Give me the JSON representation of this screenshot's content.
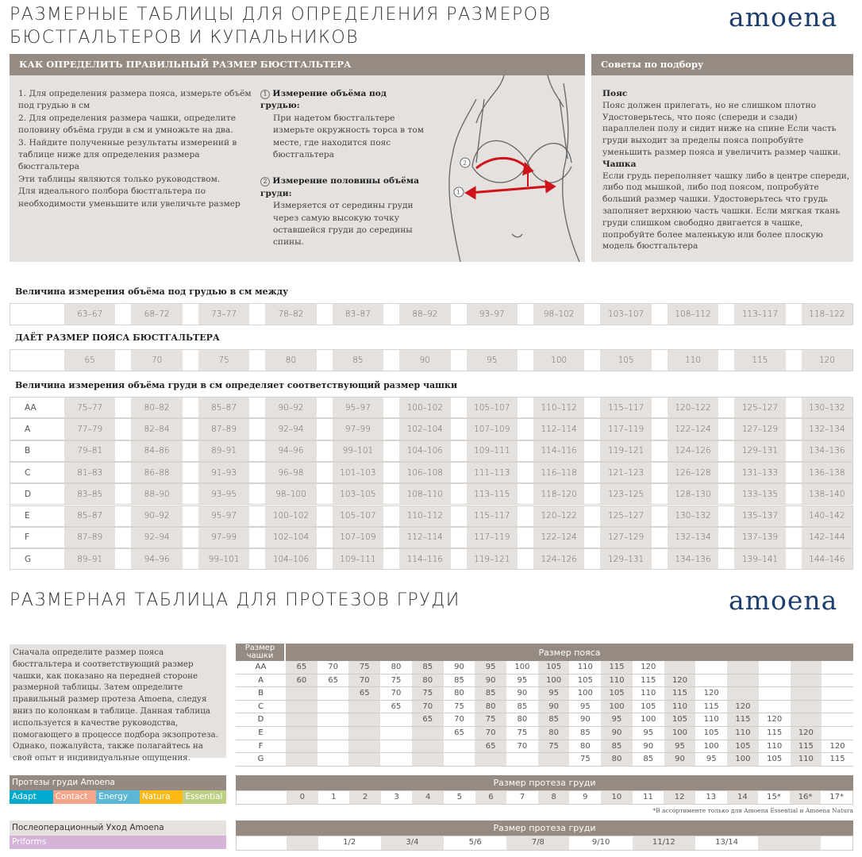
{
  "header": {
    "title_line1": "Размерные таблицы для определения размеров",
    "title_line2": "бюстгальтеров и купальников",
    "logo": "amoena",
    "brand_color": "#1c3f6e"
  },
  "how_to": {
    "heading": "КАК ОПРЕДЕЛИТЬ ПРАВИЛЬНЫЙ РАЗМЕР БЮСТГАЛЬТЕРА",
    "steps": [
      "1. Для определения размера пояса, измерьте объём под грудью в см",
      "2.  Для определения размера чашки, определите половину объёма груди в см и умножьте на два.",
      "3.  Найдите полученные результаты измерений в таблице ниже для определения размера бюстгальтера",
      "Эти таблицы являются только руководством.",
      "Для идеального полбора бюстгальтера по необходимости уменьшите или увеличьте размер"
    ],
    "m1_num": "1",
    "m1_title": "Измерение объёма под грудью:",
    "m1_text": "При надетом бюстгальтере измерьте окружность торса в том месте, где находится пояс бюстгальтера",
    "m2_num": "2",
    "m2_title": "Измерение половины объёма груди:",
    "m2_text": "Измеряется от середины груди через самую высокую точку оставшейся груди до середины спины."
  },
  "tips": {
    "heading": "Советы по подбору",
    "belt_title": "Пояс",
    "belt_text": "Пояс должен прилегать, но не слишком плотно Удостоверьтесь, что пояс (спереди и сзади) параллелен полу и сидит ниже на спине Если часть груди выходит за пределы пояса попробуйте уменьшить размер пояса и увеличить размер чашки.",
    "cup_title": "Чашка",
    "cup_text": "Если грудь переполняет чашку либо в центре спереди, либо под мышкой, либо под поясом, попробуйте больший размер чашки. Удостоверьтесь что грудь заполняет верхнюю часть чашки. Если мягкая ткань груди слишком свободно двигается в чашке, попробуйте более маленькую или более плоскую модель бюстгальтера"
  },
  "underbust": {
    "label": "Величина измерения объёма под грудью в см между",
    "values": [
      "63–67",
      "68–72",
      "73–77",
      "78–82",
      "83–87",
      "88–92",
      "93–97",
      "98–102",
      "103–107",
      "108–112",
      "113–117",
      "118–122"
    ]
  },
  "band": {
    "label": "ДАЁТ РАЗМЕР ПОЯСА БЮСТГАЛЬТЕРА",
    "values": [
      "65",
      "70",
      "75",
      "80",
      "85",
      "90",
      "95",
      "100",
      "105",
      "110",
      "115",
      "120"
    ]
  },
  "cup": {
    "label": "Величина измерения объёма груди в см определяет соответствующий размер чашки",
    "rows": [
      {
        "cup": "AA",
        "values": [
          "75–77",
          "80–82",
          "85–87",
          "90–92",
          "95–97",
          "100–102",
          "105–107",
          "110–112",
          "115–117",
          "120–122",
          "125–127",
          "130–132"
        ]
      },
      {
        "cup": "A",
        "values": [
          "77–79",
          "82–84",
          "87–89",
          "92–94",
          "97–99",
          "102–104",
          "107–109",
          "112–114",
          "117–119",
          "122–124",
          "127–129",
          "132–134"
        ]
      },
      {
        "cup": "B",
        "values": [
          "79–81",
          "84–86",
          "89–91",
          "94–96",
          "99–101",
          "104–106",
          "109–111",
          "114–116",
          "119–121",
          "124–126",
          "129–131",
          "134–136"
        ]
      },
      {
        "cup": "C",
        "values": [
          "81–83",
          "86–88",
          "91–93",
          "96–98",
          "101–103",
          "106–108",
          "111–113",
          "116–118",
          "121–123",
          "126–128",
          "131–133",
          "136–138"
        ]
      },
      {
        "cup": "D",
        "values": [
          "83–85",
          "88–90",
          "93–95",
          "98–100",
          "103–105",
          "108–110",
          "113–115",
          "118–120",
          "123–125",
          "128–130",
          "133–135",
          "138–140"
        ]
      },
      {
        "cup": "E",
        "values": [
          "85–87",
          "90–92",
          "95–97",
          "100–102",
          "105–107",
          "110–112",
          "115–117",
          "120–122",
          "125–127",
          "130–132",
          "135–137",
          "140–142"
        ]
      },
      {
        "cup": "F",
        "values": [
          "87–89",
          "92–94",
          "97–99",
          "102–104",
          "107–109",
          "112–114",
          "117–119",
          "122–124",
          "127–129",
          "132–134",
          "137–139",
          "142–144"
        ]
      },
      {
        "cup": "G",
        "values": [
          "89–91",
          "94–96",
          "99–101",
          "104–106",
          "109–111",
          "114–116",
          "119–121",
          "124–126",
          "129–131",
          "134–136",
          "139–141",
          "144–146"
        ]
      }
    ]
  },
  "prosthesis": {
    "title": "Размерная таблица для протезов груди",
    "logo": "amoena",
    "intro": "Сначала определите размер пояса бюстгальтера и соответствующий размер чашки, как показано на передней стороне размерной таблицы. Затем определите правильный размер протеза Amoena, следуя вниз по колонкам в таблице. Данная таблица используется в качестве руководства, помогающего в процессе подбора экзопротеза. Однако, пожалуйста, также полагайтесь на свой опыт и индивидуальные ощущения.",
    "cup_header": "Размер чашки",
    "band_header": "Размер пояса",
    "rows": [
      {
        "cup": "AA",
        "values": [
          "65",
          "70",
          "75",
          "80",
          "85",
          "90",
          "95",
          "100",
          "105",
          "110",
          "115",
          "120",
          "",
          "",
          "",
          "",
          "",
          ""
        ]
      },
      {
        "cup": "A",
        "values": [
          "60",
          "65",
          "70",
          "75",
          "80",
          "85",
          "90",
          "95",
          "100",
          "105",
          "110",
          "115",
          "120",
          "",
          "",
          "",
          "",
          ""
        ]
      },
      {
        "cup": "B",
        "values": [
          "",
          "",
          "65",
          "70",
          "75",
          "80",
          "85",
          "90",
          "95",
          "100",
          "105",
          "110",
          "115",
          "120",
          "",
          "",
          "",
          ""
        ]
      },
      {
        "cup": "C",
        "values": [
          "",
          "",
          "",
          "65",
          "70",
          "75",
          "80",
          "85",
          "90",
          "95",
          "100",
          "105",
          "110",
          "115",
          "120",
          "",
          "",
          ""
        ]
      },
      {
        "cup": "D",
        "values": [
          "",
          "",
          "",
          "",
          "65",
          "70",
          "75",
          "80",
          "85",
          "90",
          "95",
          "100",
          "105",
          "110",
          "115",
          "120",
          "",
          ""
        ]
      },
      {
        "cup": "E",
        "values": [
          "",
          "",
          "",
          "",
          "",
          "65",
          "70",
          "75",
          "80",
          "85",
          "90",
          "95",
          "100",
          "105",
          "110",
          "115",
          "120",
          ""
        ]
      },
      {
        "cup": "F",
        "values": [
          "",
          "",
          "",
          "",
          "",
          "",
          "65",
          "70",
          "75",
          "80",
          "85",
          "90",
          "95",
          "100",
          "105",
          "110",
          "115",
          "120"
        ]
      },
      {
        "cup": "G",
        "values": [
          "",
          "",
          "",
          "",
          "",
          "",
          "",
          "",
          "",
          "75",
          "80",
          "85",
          "90",
          "95",
          "100",
          "105",
          "110",
          "115"
        ]
      }
    ]
  },
  "products": {
    "label": "Протезы груди Amoena",
    "items": [
      {
        "name": "Adapt",
        "color": "#00a9ce"
      },
      {
        "name": "Contact",
        "color": "#f7a58a"
      },
      {
        "name": "Energy",
        "color": "#5cb6d6"
      },
      {
        "name": "Natura",
        "color": "#fdb913"
      },
      {
        "name": "Essential",
        "color": "#bccf82"
      }
    ],
    "size_header": "Размер протеза груди",
    "sizes": [
      "0",
      "1",
      "2",
      "3",
      "4",
      "5",
      "6",
      "7",
      "8",
      "9",
      "10",
      "11",
      "12",
      "13",
      "14",
      "15*",
      "16*",
      "17*"
    ],
    "footnote": "*В ассортименте только для  Amoena Essential и Amoena Natura"
  },
  "postop": {
    "label": "Послеоперационный Уход Amoena",
    "product": "Priforms",
    "product_color": "#d6b4d8",
    "size_header": "Размер протеза груди",
    "sizes": [
      "1/2",
      "3/4",
      "5/6",
      "7/8",
      "9/10",
      "11/12",
      "13/14"
    ]
  }
}
